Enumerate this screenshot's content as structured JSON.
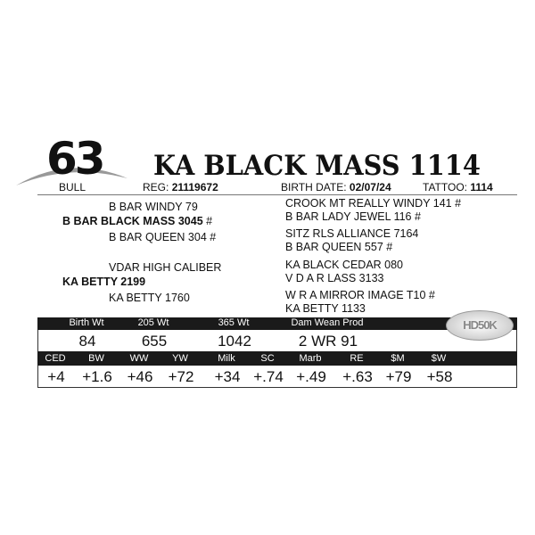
{
  "lot": {
    "number": "63",
    "sex": "BULL",
    "name": "KA BLACK MASS 1114"
  },
  "meta": {
    "reg_label": "REG:",
    "reg": "21119672",
    "birth_label": "BIRTH DATE:",
    "birth": "02/07/24",
    "tattoo_label": "TATTOO:",
    "tattoo": "1114"
  },
  "pedigree": {
    "sire_sire": "B BAR WINDY 79",
    "sire": "B BAR BLACK MASS 3045",
    "sire_mark": "#",
    "sire_dam": "B BAR QUEEN 304 #",
    "dam_sire": "VDAR HIGH CALIBER",
    "dam": "KA BETTY 2199",
    "dam_dam": "KA BETTY 1760",
    "right": [
      "CROOK MT REALLY WINDY 141 #",
      "B BAR LADY JEWEL 116 #",
      "SITZ RLS ALLIANCE 7164",
      "B BAR QUEEN 557 #",
      "KA BLACK CEDAR 080",
      "V D A R LASS 3133",
      "W R A MIRROR IMAGE T10 #",
      "KA BETTY 1133"
    ]
  },
  "badge": "HD50K",
  "performance": {
    "headers": [
      "Birth Wt",
      "205 Wt",
      "365 Wt",
      "Dam Wean Prod"
    ],
    "values": [
      "84",
      "655",
      "1042",
      "2 WR 91"
    ]
  },
  "epd": {
    "headers": [
      "CED",
      "BW",
      "WW",
      "YW",
      "Milk",
      "SC",
      "Marb",
      "RE",
      "$M",
      "$W"
    ],
    "values": [
      "+4",
      "+1.6",
      "+46",
      "+72",
      "+34",
      "+.74",
      "+.49",
      "+.63",
      "+79",
      "+58"
    ]
  }
}
